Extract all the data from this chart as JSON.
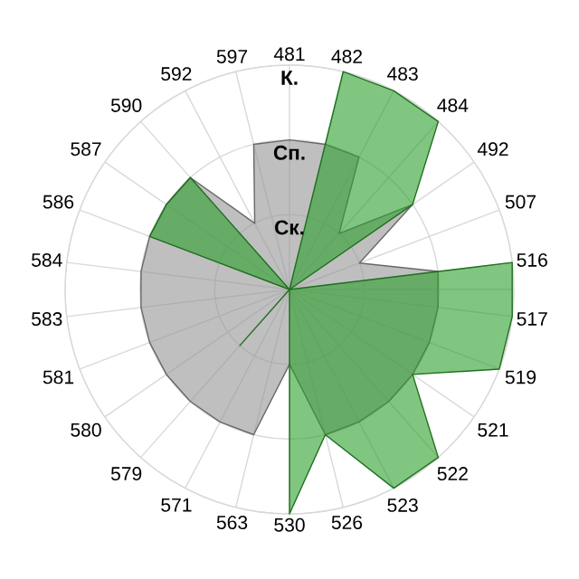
{
  "chart_data": {
    "type": "radar",
    "categories": [
      "481",
      "482",
      "483",
      "484",
      "492",
      "507",
      "516",
      "517",
      "519",
      "521",
      "522",
      "523",
      "526",
      "530",
      "563",
      "571",
      "579",
      "580",
      "581",
      "583",
      "584",
      "586",
      "587",
      "590",
      "592",
      "597"
    ],
    "ylim": [
      0,
      3
    ],
    "yticks": [
      {
        "value": 1,
        "label": "Ск."
      },
      {
        "value": 2,
        "label": "Сп."
      },
      {
        "value": 3,
        "label": "К."
      }
    ],
    "grid": true,
    "series": [
      {
        "color": "#959595",
        "values": [
          2,
          2,
          2,
          1,
          2,
          1,
          2,
          2,
          2,
          2,
          2,
          2,
          2,
          1,
          2,
          2,
          2,
          2,
          2,
          2,
          2,
          2,
          2,
          2,
          1,
          2
        ]
      },
      {
        "color": "#2ca02c",
        "values": [
          0,
          3,
          3,
          3,
          2,
          0,
          3,
          3,
          3,
          2,
          3,
          3,
          2,
          3,
          0,
          0,
          1,
          0,
          0,
          0,
          0,
          2,
          2,
          2,
          0,
          0
        ]
      }
    ]
  }
}
